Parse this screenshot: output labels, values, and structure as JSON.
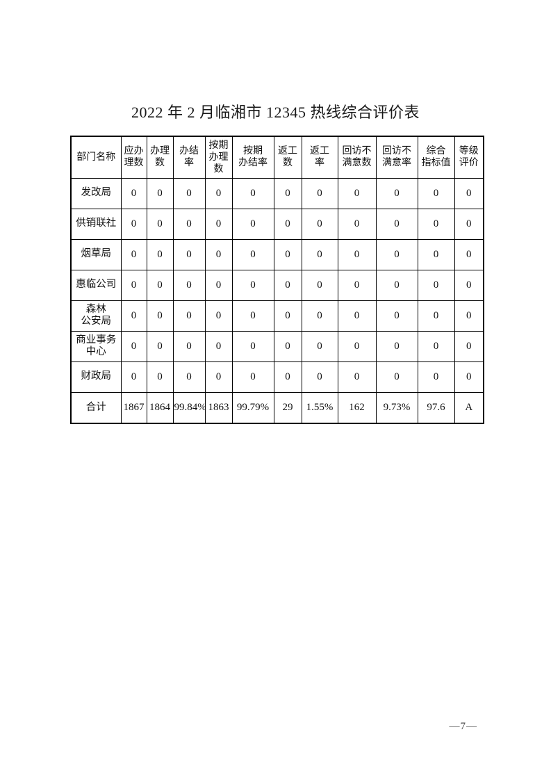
{
  "page": {
    "title": "2022 年 2 月临湘市 12345 热线综合评价表",
    "page_number": "—7—"
  },
  "table": {
    "columns": [
      {
        "id": "department-name",
        "label": "部门名称"
      },
      {
        "id": "due-count",
        "label": "应办\n理数"
      },
      {
        "id": "handled-count",
        "label": "办理\n数"
      },
      {
        "id": "completion-rate",
        "label": "办结\n率"
      },
      {
        "id": "on-time-handled-count",
        "label": "按期\n办理\n数"
      },
      {
        "id": "on-time-completion-rate",
        "label": "按期\n办结率"
      },
      {
        "id": "rework-count",
        "label": "返工\n数"
      },
      {
        "id": "rework-rate",
        "label": "返工\n率"
      },
      {
        "id": "callback-dissatisfied-count",
        "label": "回访不\n满意数"
      },
      {
        "id": "callback-dissatisfied-rate",
        "label": "回访不\n满意率"
      },
      {
        "id": "composite-index-value",
        "label": "综合\n指标值"
      },
      {
        "id": "grade-evaluation",
        "label": "等级\n评价"
      }
    ],
    "rows": [
      {
        "name": "发改局",
        "is_total": false,
        "values": [
          "0",
          "0",
          "0",
          "0",
          "0",
          "0",
          "0",
          "0",
          "0",
          "0",
          "0"
        ]
      },
      {
        "name": "供销联社",
        "is_total": false,
        "values": [
          "0",
          "0",
          "0",
          "0",
          "0",
          "0",
          "0",
          "0",
          "0",
          "0",
          "0"
        ]
      },
      {
        "name": "烟草局",
        "is_total": false,
        "values": [
          "0",
          "0",
          "0",
          "0",
          "0",
          "0",
          "0",
          "0",
          "0",
          "0",
          "0"
        ]
      },
      {
        "name": "惠临公司",
        "is_total": false,
        "values": [
          "0",
          "0",
          "0",
          "0",
          "0",
          "0",
          "0",
          "0",
          "0",
          "0",
          "0"
        ]
      },
      {
        "name": "森林\n公安局",
        "is_total": false,
        "values": [
          "0",
          "0",
          "0",
          "0",
          "0",
          "0",
          "0",
          "0",
          "0",
          "0",
          "0"
        ]
      },
      {
        "name": "商业事务\n中心",
        "is_total": false,
        "values": [
          "0",
          "0",
          "0",
          "0",
          "0",
          "0",
          "0",
          "0",
          "0",
          "0",
          "0"
        ]
      },
      {
        "name": "财政局",
        "is_total": false,
        "values": [
          "0",
          "0",
          "0",
          "0",
          "0",
          "0",
          "0",
          "0",
          "0",
          "0",
          "0"
        ]
      },
      {
        "name": "合计",
        "is_total": true,
        "values": [
          "1867",
          "1864",
          "99.84%",
          "1863",
          "99.79%",
          "29",
          "1.55%",
          "162",
          "9.73%",
          "97.6",
          "A"
        ]
      }
    ]
  }
}
